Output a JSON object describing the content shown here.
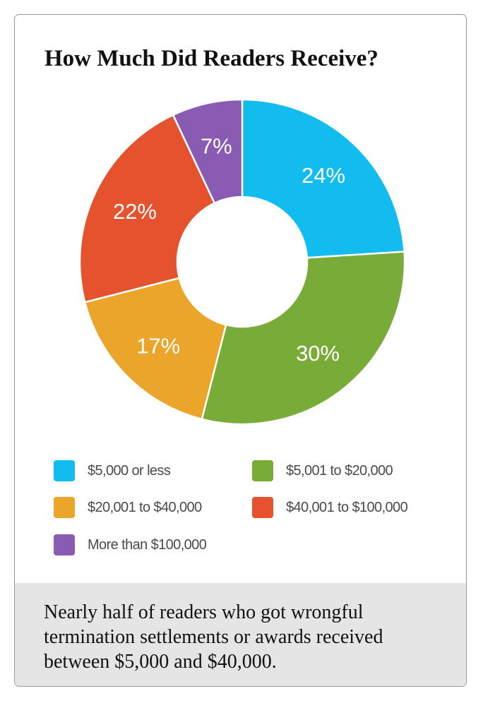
{
  "chart_data": {
    "type": "pie",
    "donut": true,
    "title": "How Much Did Readers Receive?",
    "categories": [
      "$5,000 or less",
      "$5,001 to $20,000",
      "$20,001 to $40,000",
      "$40,001 to $100,000",
      "More than $100,000"
    ],
    "values": [
      24,
      30,
      17,
      22,
      7
    ],
    "value_labels": [
      "24%",
      "30%",
      "17%",
      "22%",
      "7%"
    ],
    "colors": [
      "#12bcef",
      "#78ab38",
      "#eba52a",
      "#e5522e",
      "#8a5bb3"
    ],
    "legend_placement": "bottom",
    "slice_order": "clockwise from top"
  },
  "legend": {
    "items": [
      {
        "label": "$5,000 or less",
        "color": "#12bcef"
      },
      {
        "label": "$5,001 to $20,000",
        "color": "#78ab38"
      },
      {
        "label": "$20,001 to $40,000",
        "color": "#eba52a"
      },
      {
        "label": "$40,001 to $100,000",
        "color": "#e5522e"
      },
      {
        "label": "More than $100,000",
        "color": "#8a5bb3"
      }
    ]
  },
  "caption": "Nearly half of readers who got wrongful termination settlements or awards received between $5,000 and $40,000."
}
